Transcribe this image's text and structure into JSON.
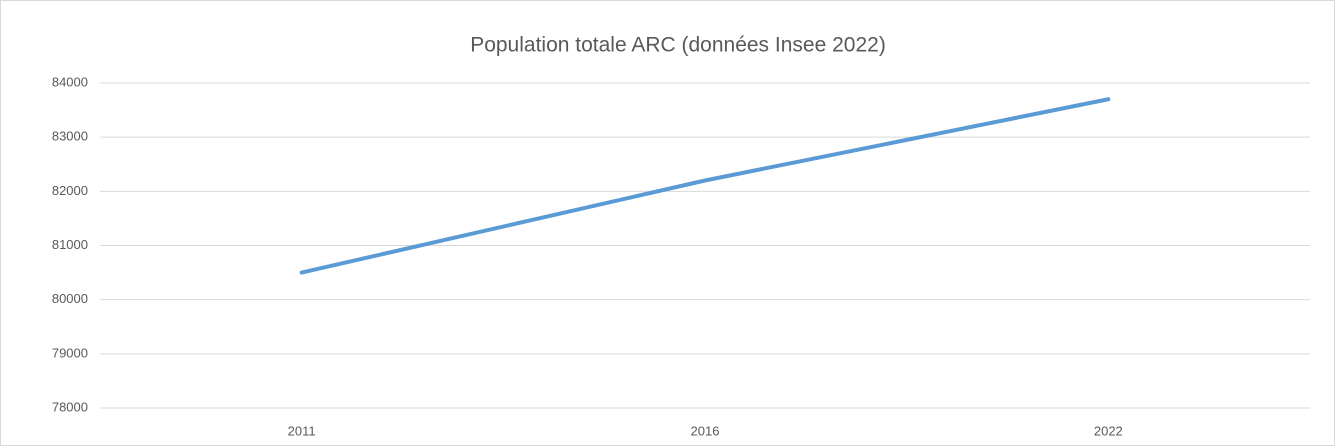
{
  "chart_data": {
    "type": "line",
    "title": "Population totale ARC (données Insee 2022)",
    "categories": [
      "2011",
      "2016",
      "2022"
    ],
    "series": [
      {
        "name": "Population totale",
        "color": "#5b9bd5",
        "values": [
          80500,
          82200,
          83700
        ]
      }
    ],
    "ylim": [
      78000,
      84000
    ],
    "yticks": [
      78000,
      79000,
      80000,
      81000,
      82000,
      83000,
      84000
    ],
    "grid": true
  }
}
